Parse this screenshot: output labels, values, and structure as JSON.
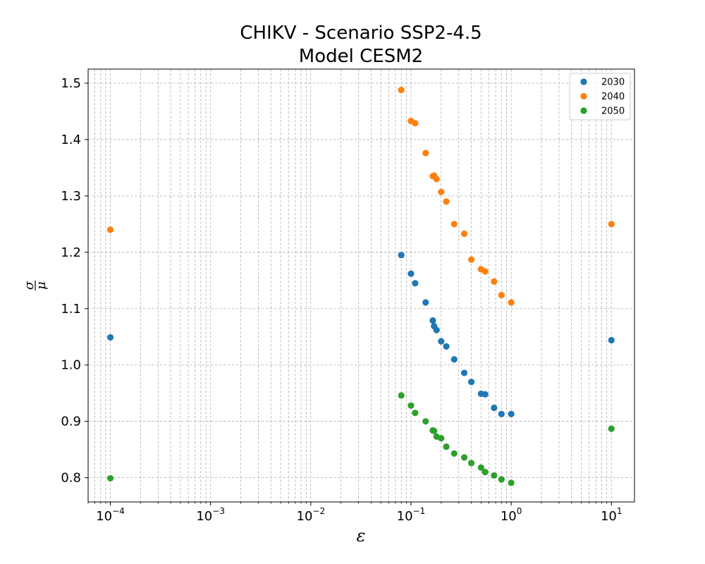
{
  "chart_data": {
    "type": "scatter",
    "title": [
      "CHIKV - Scenario SSP2-4.5",
      "Model CESM2"
    ],
    "xlabel": "ε",
    "ylabel": {
      "numerator": "σ",
      "denominator": "μ"
    },
    "xscale": "log",
    "xlim": [
      6e-05,
      17
    ],
    "ylim": [
      0.757,
      1.525
    ],
    "x_ticks": [
      {
        "value": 0.0001,
        "base": "10",
        "exp": "−4"
      },
      {
        "value": 0.001,
        "base": "10",
        "exp": "−3"
      },
      {
        "value": 0.01,
        "base": "10",
        "exp": "−2"
      },
      {
        "value": 0.1,
        "base": "10",
        "exp": "−1"
      },
      {
        "value": 1,
        "base": "10",
        "exp": "0"
      },
      {
        "value": 10,
        "base": "10",
        "exp": "1"
      }
    ],
    "y_ticks": [
      {
        "value": 0.8,
        "label": "0.8"
      },
      {
        "value": 0.9,
        "label": "0.9"
      },
      {
        "value": 1.0,
        "label": "1.0"
      },
      {
        "value": 1.1,
        "label": "1.1"
      },
      {
        "value": 1.2,
        "label": "1.2"
      },
      {
        "value": 1.3,
        "label": "1.3"
      },
      {
        "value": 1.4,
        "label": "1.4"
      },
      {
        "value": 1.5,
        "label": "1.5"
      }
    ],
    "grid": true,
    "legend_position": "top-right",
    "x": [
      0.0001,
      0.08,
      0.1,
      0.11,
      0.14,
      0.165,
      0.17,
      0.18,
      0.2,
      0.225,
      0.27,
      0.34,
      0.4,
      0.5,
      0.55,
      0.675,
      0.8,
      1.0,
      10
    ],
    "series": [
      {
        "name": "2030",
        "color": "#1f77b4",
        "values": [
          1.049,
          1.195,
          1.162,
          1.145,
          1.111,
          1.079,
          1.069,
          1.062,
          1.042,
          1.033,
          1.01,
          0.986,
          0.97,
          0.949,
          0.948,
          0.924,
          0.913,
          0.913,
          1.044
        ]
      },
      {
        "name": "2040",
        "color": "#ff7f0e",
        "values": [
          1.24,
          1.488,
          1.433,
          1.429,
          1.376,
          1.335,
          1.336,
          1.33,
          1.307,
          1.29,
          1.25,
          1.233,
          1.187,
          1.17,
          1.166,
          1.148,
          1.124,
          1.111,
          1.25
        ]
      },
      {
        "name": "2050",
        "color": "#2ca02c",
        "values": [
          0.799,
          0.946,
          0.928,
          0.915,
          0.9,
          0.884,
          0.883,
          0.873,
          0.87,
          0.855,
          0.843,
          0.836,
          0.826,
          0.818,
          0.81,
          0.804,
          0.797,
          0.791,
          0.887
        ]
      }
    ]
  }
}
